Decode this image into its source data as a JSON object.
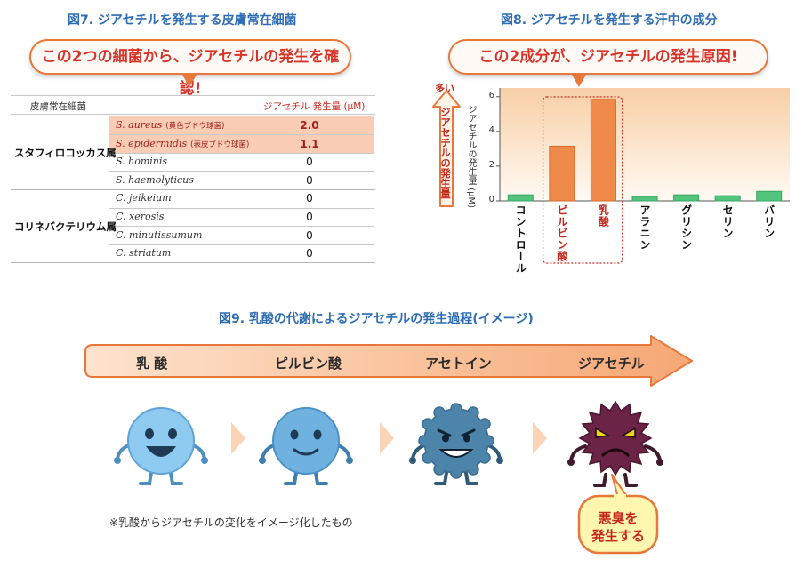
{
  "fig7": {
    "title": "図7. ジアセチルを発生する皮膚常在細菌",
    "callout": "この2つの細菌から、ジアセチルの発生を確認!",
    "header_left": "皮膚常在細菌",
    "header_right": "ジアセチル 発生量 (μM)",
    "groups": [
      {
        "genus": "スタフィロコッカス属",
        "rows": [
          {
            "species": "S. aureus",
            "note": "(黄色ブドウ球菌)",
            "value": "2.0",
            "highlight": true
          },
          {
            "species": "S. epidermidis",
            "note": "(表皮ブドウ球菌)",
            "value": "1.1",
            "highlight": true
          },
          {
            "species": "S. hominis",
            "note": "",
            "value": "0",
            "highlight": false
          },
          {
            "species": "S. haemolyticus",
            "note": "",
            "value": "0",
            "highlight": false
          }
        ]
      },
      {
        "genus": "コリネバクテリウム属",
        "rows": [
          {
            "species": "C. jeikeium",
            "note": "",
            "value": "0",
            "highlight": false
          },
          {
            "species": "C. xerosis",
            "note": "",
            "value": "0",
            "highlight": false
          },
          {
            "species": "C. minutissumum",
            "note": "",
            "value": "0",
            "highlight": false
          },
          {
            "species": "C. striatum",
            "note": "",
            "value": "0",
            "highlight": false
          }
        ]
      }
    ]
  },
  "fig8": {
    "title": "図8. ジアセチルを発生する汗中の成分",
    "callout": "この2成分が、ジアセチルの発生原因!",
    "more_label": "多い",
    "arrow_label": "ジアセチルの発生量",
    "colors": {
      "highlight": "#ef8a4a",
      "other": "#52c47e"
    },
    "chart_data": {
      "type": "bar",
      "ylabel": "ジアセチルの発生量 (μM)",
      "ylim": [
        0,
        6.5
      ],
      "yticks": [
        0,
        2,
        4,
        6
      ],
      "categories": [
        "コントロール",
        "ピルビン酸",
        "乳酸",
        "アラニン",
        "グリシン",
        "セリン",
        "バリン"
      ],
      "values": [
        0.35,
        3.15,
        5.85,
        0.25,
        0.35,
        0.3,
        0.55
      ],
      "highlighted": [
        false,
        true,
        true,
        false,
        false,
        false,
        false
      ],
      "category_label_highlight": [
        false,
        true,
        true,
        false,
        false,
        false,
        false
      ]
    }
  },
  "fig9": {
    "title": "図9. 乳酸の代謝によるジアセチルの発生過程(イメージ)",
    "stages": [
      "乳 酸",
      "ピルビン酸",
      "アセトイン",
      "ジアセチル"
    ],
    "characters": [
      "happy-blue",
      "smiling-blue",
      "grinning-dark-blue",
      "angry-purple"
    ],
    "footnote": "※乳酸からジアセチルの変化をイメージ化したもの",
    "bad_smell_badge": [
      "悪臭を",
      "発生する"
    ]
  }
}
